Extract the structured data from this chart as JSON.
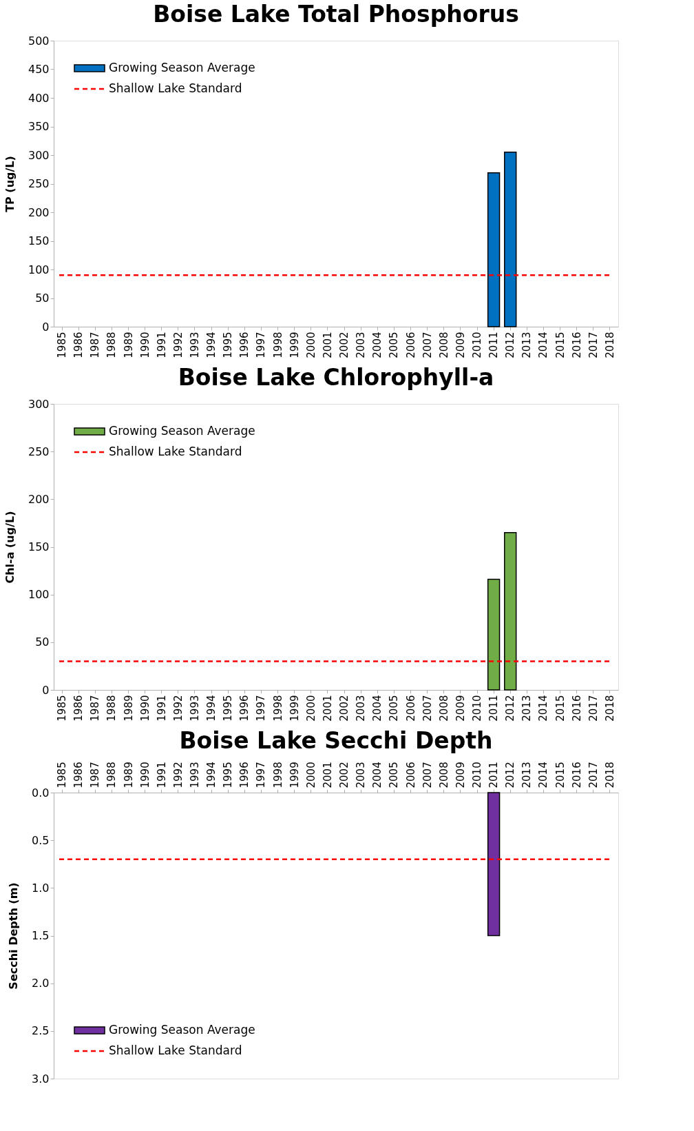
{
  "chart_data": [
    {
      "type": "bar",
      "title": "Boise Lake Total Phosphorus",
      "ylabel": "TP (ug/L)",
      "categories": [
        "1985",
        "1986",
        "1987",
        "1988",
        "1989",
        "1990",
        "1991",
        "1992",
        "1993",
        "1994",
        "1995",
        "1996",
        "1997",
        "1998",
        "1999",
        "2000",
        "2001",
        "2002",
        "2003",
        "2004",
        "2005",
        "2006",
        "2007",
        "2008",
        "2009",
        "2010",
        "2011",
        "2012",
        "2013",
        "2014",
        "2015",
        "2016",
        "2017",
        "2018"
      ],
      "series": [
        {
          "name": "Growing Season Average",
          "color": "#0070c0",
          "values": [
            null,
            null,
            null,
            null,
            null,
            null,
            null,
            null,
            null,
            null,
            null,
            null,
            null,
            null,
            null,
            null,
            null,
            null,
            null,
            null,
            null,
            null,
            null,
            null,
            null,
            null,
            269,
            305,
            null,
            null,
            null,
            null,
            null,
            null
          ]
        }
      ],
      "ref_lines": [
        {
          "axis": "y",
          "value": 90,
          "label": "Shallow Lake Standard",
          "color": "#ff0000",
          "line_style": "dashed"
        }
      ],
      "ylim": [
        0,
        500
      ],
      "yticks": [
        0,
        50,
        100,
        150,
        200,
        250,
        300,
        350,
        400,
        450,
        500
      ],
      "grid": false,
      "legend": "top left"
    },
    {
      "type": "bar",
      "title": "Boise Lake Chlorophyll-a",
      "ylabel": "Chl-a (ug/L)",
      "categories": [
        "1985",
        "1986",
        "1987",
        "1988",
        "1989",
        "1990",
        "1991",
        "1992",
        "1993",
        "1994",
        "1995",
        "1996",
        "1997",
        "1998",
        "1999",
        "2000",
        "2001",
        "2002",
        "2003",
        "2004",
        "2005",
        "2006",
        "2007",
        "2008",
        "2009",
        "2010",
        "2011",
        "2012",
        "2013",
        "2014",
        "2015",
        "2016",
        "2017",
        "2018"
      ],
      "series": [
        {
          "name": "Growing Season Average",
          "color": "#70ad47",
          "values": [
            null,
            null,
            null,
            null,
            null,
            null,
            null,
            null,
            null,
            null,
            null,
            null,
            null,
            null,
            null,
            null,
            null,
            null,
            null,
            null,
            null,
            null,
            null,
            null,
            null,
            null,
            116,
            165,
            null,
            null,
            null,
            null,
            null,
            null
          ]
        }
      ],
      "ref_lines": [
        {
          "axis": "y",
          "value": 30,
          "label": "Shallow Lake Standard",
          "color": "#ff0000",
          "line_style": "dashed"
        }
      ],
      "ylim": [
        0,
        300
      ],
      "yticks": [
        0,
        50,
        100,
        150,
        200,
        250,
        300
      ],
      "grid": false,
      "legend": "top left"
    },
    {
      "type": "bar",
      "title": "Boise Lake Secchi Depth",
      "ylabel": "Secchi Depth (m)",
      "categories": [
        "1985",
        "1986",
        "1987",
        "1988",
        "1989",
        "1990",
        "1991",
        "1992",
        "1993",
        "1994",
        "1995",
        "1996",
        "1997",
        "1998",
        "1999",
        "2000",
        "2001",
        "2002",
        "2003",
        "2004",
        "2005",
        "2006",
        "2007",
        "2008",
        "2009",
        "2010",
        "2011",
        "2012",
        "2013",
        "2014",
        "2015",
        "2016",
        "2017",
        "2018"
      ],
      "series": [
        {
          "name": "Growing Season Average",
          "color": "#7030a0",
          "values": [
            null,
            null,
            null,
            null,
            null,
            null,
            null,
            null,
            null,
            null,
            null,
            null,
            null,
            null,
            null,
            null,
            null,
            null,
            null,
            null,
            null,
            null,
            null,
            null,
            null,
            null,
            1.5,
            null,
            null,
            null,
            null,
            null,
            null,
            null
          ]
        }
      ],
      "ref_lines": [
        {
          "axis": "y",
          "value": 0.7,
          "label": "Shallow Lake Standard",
          "color": "#ff0000",
          "line_style": "dashed"
        }
      ],
      "ylim": [
        3,
        0
      ],
      "yticks": [
        {
          "value": 0,
          "label": "0.0"
        },
        {
          "value": 0.5,
          "label": "0.5"
        },
        {
          "value": 1,
          "label": "1.0"
        },
        {
          "value": 1.5,
          "label": "1.5"
        },
        {
          "value": 2,
          "label": "2.0"
        },
        {
          "value": 2.5,
          "label": "2.5"
        },
        {
          "value": 3,
          "label": "3.0"
        }
      ],
      "grid": false,
      "legend": "bottom left"
    }
  ]
}
